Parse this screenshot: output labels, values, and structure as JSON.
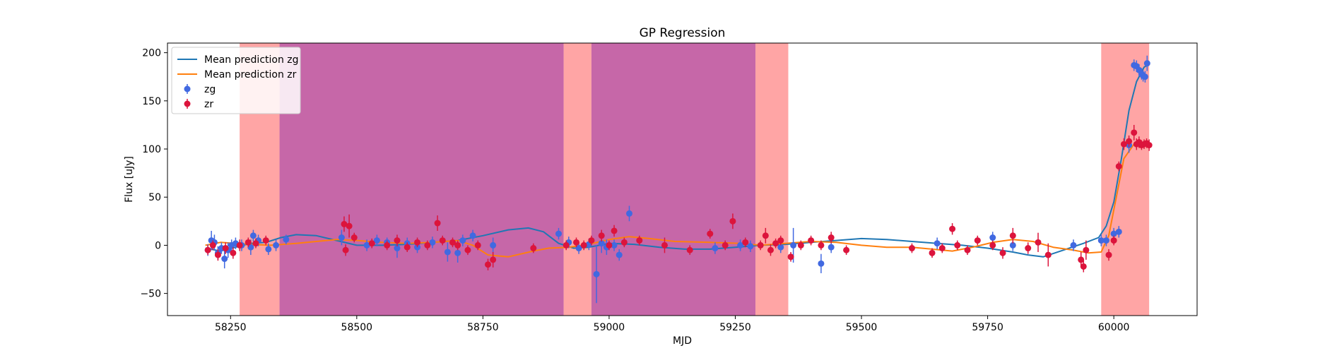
{
  "chart_data": {
    "type": "scatter",
    "title": "GP Regression",
    "xlabel": "MJD",
    "ylabel": "Flux [uJy]",
    "xlim": [
      58125,
      60165
    ],
    "ylim": [
      -73,
      210
    ],
    "xticks": [
      58250,
      58500,
      58750,
      59000,
      59250,
      59500,
      59750,
      60000
    ],
    "yticks": [
      -50,
      0,
      50,
      100,
      150,
      200
    ],
    "legend": {
      "position": "top-left",
      "entries": [
        {
          "label": "Mean prediction zg",
          "kind": "line",
          "color": "#1f77b4"
        },
        {
          "label": "Mean prediction zr",
          "kind": "line",
          "color": "#ff7f0e"
        },
        {
          "label": "zg",
          "kind": "marker",
          "color": "#4169e1"
        },
        {
          "label": "zr",
          "kind": "marker",
          "color": "#dc143c"
        }
      ]
    },
    "shaded_regions": [
      {
        "x0": 58268,
        "x1": 58347,
        "color": "#ff7f7f",
        "opacity": 0.7
      },
      {
        "x0": 58347,
        "x1": 58910,
        "color": "#c0569e",
        "opacity": 0.9
      },
      {
        "x0": 58910,
        "x1": 58965,
        "color": "#ff7f7f",
        "opacity": 0.7
      },
      {
        "x0": 58965,
        "x1": 59290,
        "color": "#c0569e",
        "opacity": 0.9
      },
      {
        "x0": 59290,
        "x1": 59355,
        "color": "#ff7f7f",
        "opacity": 0.7
      },
      {
        "x0": 59975,
        "x1": 60070,
        "color": "#ff7f7f",
        "opacity": 0.7
      }
    ],
    "series": [
      {
        "name": "Mean prediction zg",
        "kind": "line",
        "color": "#1f77b4",
        "x": [
          58200,
          58230,
          58260,
          58290,
          58320,
          58350,
          58380,
          58420,
          58460,
          58500,
          58550,
          58600,
          58650,
          58700,
          58750,
          58800,
          58840,
          58870,
          58900,
          58930,
          58960,
          59000,
          59050,
          59100,
          59150,
          59200,
          59250,
          59300,
          59350,
          59400,
          59450,
          59500,
          59550,
          59600,
          59650,
          59700,
          59750,
          59800,
          59830,
          59860,
          59900,
          59940,
          59970,
          59985,
          60000,
          60015,
          60030,
          60045,
          60060,
          60070
        ],
        "y": [
          -3,
          -6,
          -2,
          2,
          3,
          8,
          11,
          10,
          5,
          0,
          0,
          1,
          3,
          5,
          10,
          16,
          18,
          14,
          2,
          -3,
          -2,
          2,
          1,
          -2,
          -4,
          -4,
          -2,
          0,
          1,
          3,
          5,
          7,
          6,
          4,
          2,
          0,
          -3,
          -7,
          -10,
          -12,
          -5,
          2,
          8,
          20,
          45,
          90,
          140,
          170,
          185,
          188
        ]
      },
      {
        "name": "Mean prediction zr",
        "kind": "line",
        "color": "#ff7f0e",
        "x": [
          58200,
          58230,
          58260,
          58290,
          58330,
          58380,
          58420,
          58460,
          58500,
          58550,
          58600,
          58650,
          58700,
          58730,
          58760,
          58800,
          58850,
          58880,
          58920,
          58960,
          59000,
          59040,
          59080,
          59130,
          59200,
          59260,
          59300,
          59350,
          59400,
          59450,
          59500,
          59550,
          59600,
          59640,
          59680,
          59720,
          59760,
          59800,
          59840,
          59880,
          59920,
          59950,
          59975,
          59990,
          60005,
          60020,
          60040,
          60055,
          60070
        ],
        "y": [
          0,
          3,
          2,
          1,
          0,
          2,
          4,
          6,
          5,
          3,
          2,
          3,
          5,
          0,
          -10,
          -12,
          -6,
          -3,
          -2,
          1,
          6,
          9,
          7,
          4,
          3,
          2,
          0,
          2,
          4,
          3,
          0,
          -2,
          -2,
          -4,
          -6,
          -2,
          3,
          6,
          4,
          -2,
          -5,
          -8,
          -7,
          10,
          50,
          90,
          105,
          106,
          105
        ]
      },
      {
        "name": "zg",
        "kind": "errorbar",
        "color": "#4169e1",
        "x": [
          58205,
          58212,
          58218,
          58225,
          58232,
          58238,
          58245,
          58252,
          58260,
          58272,
          58290,
          58295,
          58305,
          58325,
          58340,
          58360,
          58470,
          58520,
          58540,
          58560,
          58580,
          58600,
          58620,
          58650,
          58680,
          58700,
          58710,
          58730,
          58770,
          58900,
          58920,
          58940,
          58960,
          58975,
          58985,
          58995,
          59010,
          59020,
          59040,
          59210,
          59260,
          59280,
          59340,
          59365,
          59420,
          59440,
          59650,
          59760,
          59800,
          59920,
          59975,
          59985,
          60000,
          60010,
          60030,
          60040,
          60045,
          60050,
          60055,
          60058,
          60062,
          60066
        ],
        "y": [
          -5,
          5,
          3,
          -8,
          -3,
          -14,
          -5,
          0,
          2,
          0,
          -2,
          10,
          5,
          -4,
          0,
          6,
          8,
          0,
          5,
          3,
          -3,
          2,
          -2,
          3,
          -7,
          -8,
          5,
          10,
          0,
          12,
          3,
          -3,
          1,
          -30,
          2,
          -2,
          0,
          -10,
          33,
          -3,
          0,
          -1,
          -2,
          0,
          -19,
          -2,
          2,
          8,
          0,
          0,
          5,
          5,
          12,
          14,
          104,
          187,
          186,
          182,
          178,
          176,
          175,
          189
        ],
        "yerr": [
          6,
          10,
          8,
          7,
          6,
          10,
          8,
          6,
          6,
          6,
          8,
          6,
          6,
          6,
          6,
          5,
          8,
          6,
          6,
          5,
          10,
          6,
          6,
          6,
          10,
          10,
          6,
          6,
          8,
          6,
          6,
          6,
          6,
          30,
          10,
          8,
          6,
          6,
          8,
          6,
          6,
          6,
          6,
          18,
          10,
          6,
          6,
          6,
          6,
          6,
          6,
          6,
          6,
          6,
          8,
          6,
          6,
          6,
          6,
          6,
          6,
          8
        ]
      },
      {
        "name": "zr",
        "kind": "errorbar",
        "color": "#dc143c",
        "x": [
          58205,
          58215,
          58225,
          58240,
          58255,
          58268,
          58285,
          58300,
          58320,
          58475,
          58478,
          58485,
          58495,
          58530,
          58560,
          58580,
          58600,
          58620,
          58640,
          58660,
          58670,
          58690,
          58700,
          58720,
          58740,
          58760,
          58770,
          58850,
          58915,
          58935,
          58950,
          58965,
          58985,
          59000,
          59010,
          59030,
          59060,
          59110,
          59160,
          59200,
          59230,
          59245,
          59270,
          59300,
          59310,
          59320,
          59330,
          59340,
          59360,
          59380,
          59400,
          59420,
          59440,
          59470,
          59600,
          59640,
          59660,
          59680,
          59690,
          59710,
          59730,
          59760,
          59780,
          59800,
          59830,
          59850,
          59870,
          59935,
          59940,
          59945,
          59990,
          60000,
          60010,
          60020,
          60030,
          60040,
          60045,
          60050,
          60055,
          60060,
          60065,
          60070
        ],
        "y": [
          -5,
          0,
          -10,
          -3,
          -8,
          0,
          3,
          2,
          5,
          22,
          -5,
          20,
          8,
          2,
          0,
          5,
          -2,
          3,
          0,
          23,
          5,
          3,
          0,
          -5,
          0,
          -20,
          -15,
          -3,
          0,
          3,
          0,
          5,
          10,
          0,
          15,
          3,
          5,
          0,
          -5,
          12,
          0,
          25,
          3,
          0,
          10,
          -5,
          2,
          5,
          -12,
          0,
          5,
          0,
          8,
          -5,
          -3,
          -8,
          -3,
          17,
          0,
          -5,
          5,
          0,
          -8,
          10,
          -3,
          3,
          -10,
          -15,
          -22,
          -5,
          -10,
          5,
          82,
          105,
          108,
          117,
          105,
          107,
          104,
          105,
          106,
          104
        ],
        "yerr": [
          5,
          5,
          6,
          6,
          6,
          6,
          5,
          5,
          5,
          8,
          6,
          12,
          5,
          5,
          5,
          6,
          5,
          5,
          5,
          8,
          5,
          5,
          5,
          5,
          5,
          6,
          8,
          5,
          5,
          5,
          5,
          5,
          6,
          5,
          6,
          5,
          5,
          8,
          5,
          5,
          5,
          8,
          5,
          5,
          8,
          6,
          5,
          5,
          5,
          5,
          5,
          5,
          6,
          5,
          5,
          5,
          5,
          6,
          5,
          5,
          5,
          5,
          6,
          8,
          6,
          10,
          12,
          8,
          6,
          10,
          6,
          5,
          5,
          6,
          6,
          8,
          6,
          6,
          5,
          5,
          5,
          6
        ]
      }
    ]
  }
}
